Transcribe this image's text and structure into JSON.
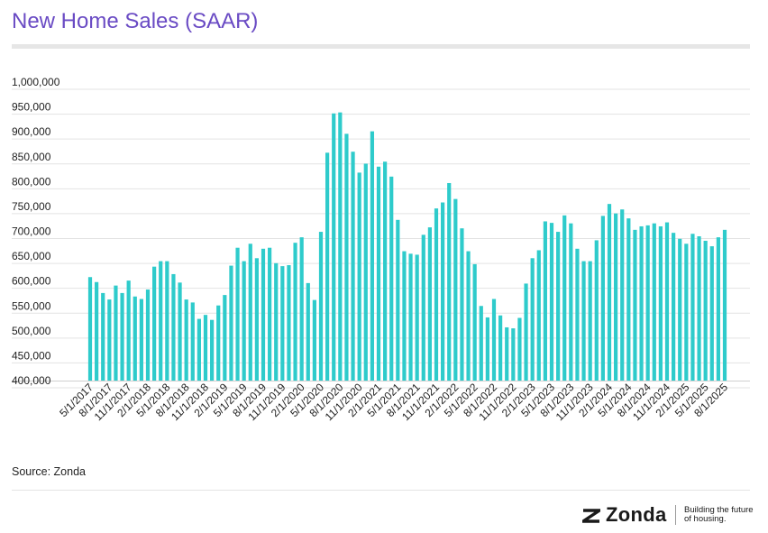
{
  "header": {
    "title": "New Home Sales (SAAR)"
  },
  "footer": {
    "source": "Source: Zonda",
    "brand": "Zonda",
    "tagline_line1": "Building the future",
    "tagline_line2": "of housing."
  },
  "colors": {
    "bar": "#2ecbcb",
    "title": "#6a4bc4",
    "grid": "#e3e3e3"
  },
  "chart_data": {
    "type": "bar",
    "title": "New Home Sales (SAAR)",
    "xlabel": "",
    "ylabel": "",
    "ylim": [
      400000,
      1000000
    ],
    "y_ticks": [
      1000000,
      950000,
      900000,
      850000,
      800000,
      750000,
      700000,
      650000,
      600000,
      550000,
      500000,
      450000,
      400000
    ],
    "y_tick_labels": [
      "1,000,000",
      "950,000",
      "900,000",
      "850,000",
      "800,000",
      "750,000",
      "700,000",
      "650,000",
      "600,000",
      "550,000",
      "500,000",
      "450,000",
      "400,000"
    ],
    "grid": true,
    "x_tick_labels": [
      "5/1/2017",
      "8/1/2017",
      "11/1/2017",
      "2/1/2018",
      "5/1/2018",
      "8/1/2018",
      "11/1/2018",
      "2/1/2019",
      "5/1/2019",
      "8/1/2019",
      "11/1/2019",
      "2/1/2020",
      "5/1/2020",
      "8/1/2020",
      "11/1/2020",
      "2/1/2021",
      "5/1/2021",
      "8/1/2021",
      "11/1/2021",
      "2/1/2022",
      "5/1/2022",
      "8/1/2022",
      "11/1/2022",
      "2/1/2023",
      "5/1/2023",
      "8/1/2023",
      "11/1/2023",
      "2/1/2024",
      "5/1/2024",
      "8/1/2024",
      "11/1/2024",
      "2/1/2025",
      "5/1/2025",
      "8/1/2025"
    ],
    "categories": [
      "5/1/2017",
      "6/1/2017",
      "7/1/2017",
      "8/1/2017",
      "9/1/2017",
      "10/1/2017",
      "11/1/2017",
      "12/1/2017",
      "1/1/2018",
      "2/1/2018",
      "3/1/2018",
      "4/1/2018",
      "5/1/2018",
      "6/1/2018",
      "7/1/2018",
      "8/1/2018",
      "9/1/2018",
      "10/1/2018",
      "11/1/2018",
      "12/1/2018",
      "1/1/2019",
      "2/1/2019",
      "3/1/2019",
      "4/1/2019",
      "5/1/2019",
      "6/1/2019",
      "7/1/2019",
      "8/1/2019",
      "9/1/2019",
      "10/1/2019",
      "11/1/2019",
      "12/1/2019",
      "1/1/2020",
      "2/1/2020",
      "3/1/2020",
      "4/1/2020",
      "5/1/2020",
      "6/1/2020",
      "7/1/2020",
      "8/1/2020",
      "9/1/2020",
      "10/1/2020",
      "11/1/2020",
      "12/1/2020",
      "1/1/2021",
      "2/1/2021",
      "3/1/2021",
      "4/1/2021",
      "5/1/2021",
      "6/1/2021",
      "7/1/2021",
      "8/1/2021",
      "9/1/2021",
      "10/1/2021",
      "11/1/2021",
      "12/1/2021",
      "1/1/2022",
      "2/1/2022",
      "3/1/2022",
      "4/1/2022",
      "5/1/2022",
      "6/1/2022",
      "7/1/2022",
      "8/1/2022",
      "9/1/2022",
      "10/1/2022",
      "11/1/2022",
      "12/1/2022",
      "1/1/2023",
      "2/1/2023",
      "3/1/2023",
      "4/1/2023",
      "5/1/2023",
      "6/1/2023",
      "7/1/2023",
      "8/1/2023",
      "9/1/2023",
      "10/1/2023",
      "11/1/2023",
      "12/1/2023",
      "1/1/2024",
      "2/1/2024",
      "3/1/2024",
      "4/1/2024",
      "5/1/2024",
      "6/1/2024",
      "7/1/2024",
      "8/1/2024",
      "9/1/2024",
      "10/1/2024",
      "11/1/2024",
      "12/1/2024",
      "1/1/2025",
      "2/1/2025",
      "3/1/2025",
      "4/1/2025",
      "5/1/2025",
      "6/1/2025",
      "7/1/2025",
      "8/1/2025"
    ],
    "values": [
      608000,
      598000,
      576000,
      563000,
      591000,
      576000,
      601000,
      569000,
      564000,
      583000,
      629000,
      640000,
      640000,
      614000,
      597000,
      563000,
      557000,
      524000,
      532000,
      522000,
      551000,
      572000,
      631000,
      667000,
      640000,
      675000,
      646000,
      665000,
      667000,
      636000,
      630000,
      632000,
      677000,
      688000,
      596000,
      562000,
      699000,
      858000,
      937000,
      939000,
      896000,
      860000,
      818000,
      836000,
      901000,
      830000,
      840000,
      810000,
      723000,
      660000,
      655000,
      653000,
      693000,
      708000,
      746000,
      758000,
      797000,
      765000,
      706000,
      660000,
      634000,
      550000,
      527000,
      564000,
      531000,
      507000,
      505000,
      526000,
      595000,
      646000,
      662000,
      720000,
      717000,
      699000,
      732000,
      716000,
      665000,
      640000,
      640000,
      682000,
      731000,
      755000,
      736000,
      744000,
      726000,
      703000,
      710000,
      712000,
      716000,
      710000,
      718000,
      697000,
      685000,
      675000,
      695000,
      690000,
      681000,
      670000,
      688000,
      703000
    ]
  }
}
